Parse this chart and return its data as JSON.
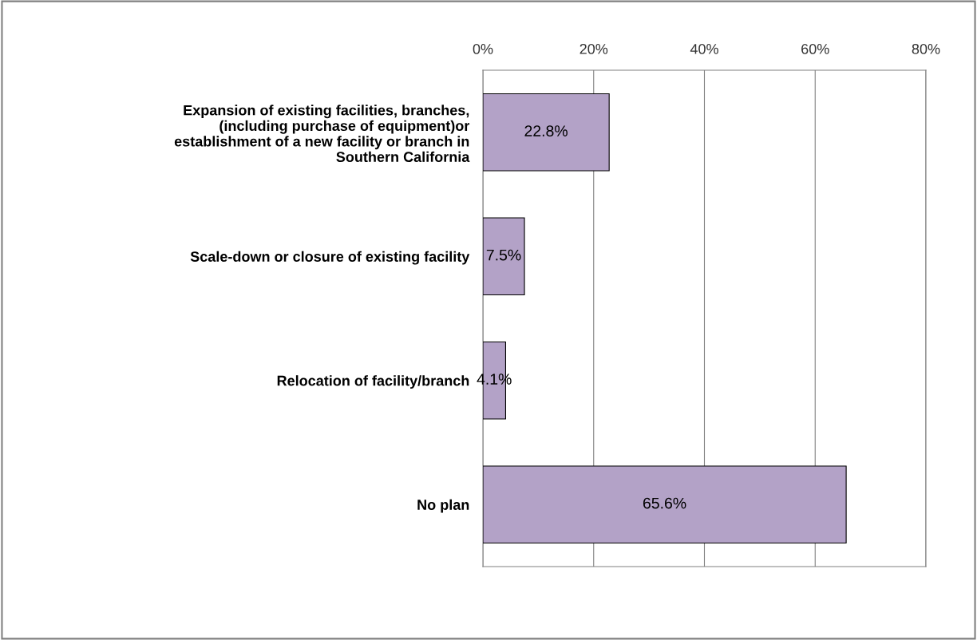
{
  "chart_data": {
    "type": "bar",
    "orientation": "horizontal",
    "categories": [
      "Expansion of existing facilities, branches,\n(including purchase of equipment)or\nestablishment of a new facility or branch in\nSouthern California",
      "Scale-down or closure of existing facility",
      "Relocation of facility/branch",
      "No plan"
    ],
    "values": [
      22.8,
      7.5,
      4.1,
      65.6
    ],
    "value_labels": [
      "22.8%",
      "7.5%",
      "4.1%",
      "65.6%"
    ],
    "color": "#b3a2c7",
    "xlim": [
      0,
      80
    ],
    "xticks": [
      {
        "value": 0,
        "label": "0%"
      },
      {
        "value": 20,
        "label": "20%"
      },
      {
        "value": 40,
        "label": "40%"
      },
      {
        "value": 60,
        "label": "60%"
      },
      {
        "value": 80,
        "label": "80%"
      }
    ],
    "grid": "x"
  }
}
